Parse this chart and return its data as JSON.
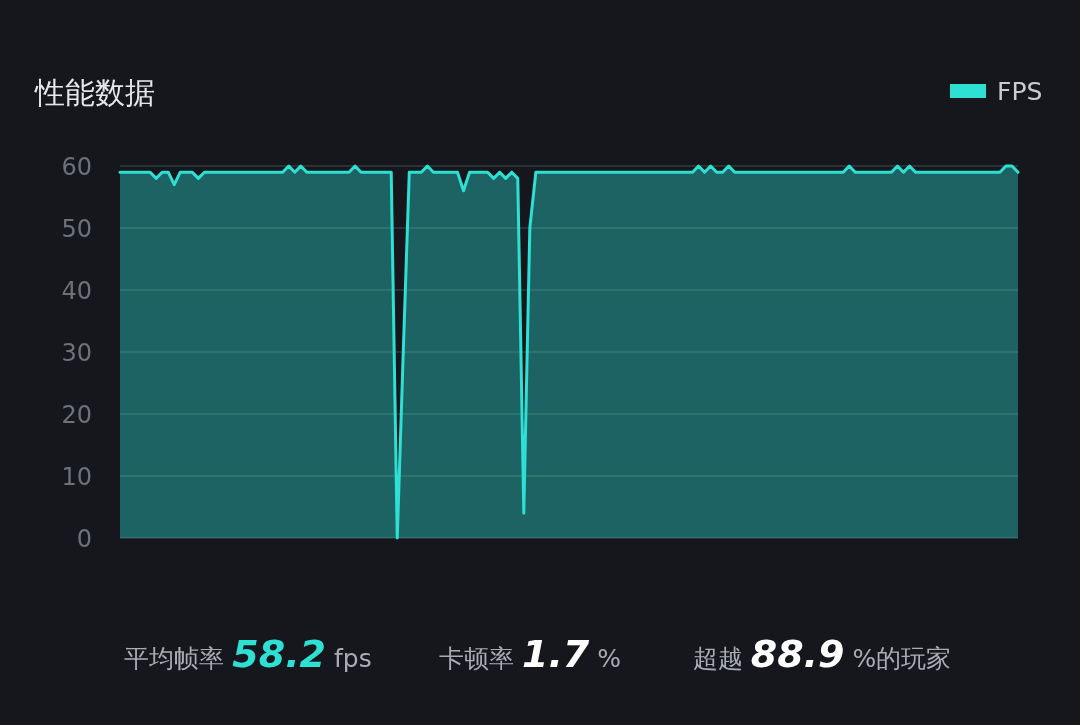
{
  "chart_data": {
    "type": "area",
    "title": "性能数据",
    "categories": [
      null,
      null,
      null,
      null,
      null,
      null,
      null,
      null,
      null,
      null,
      null,
      null,
      null,
      null,
      null,
      null,
      null,
      null,
      null,
      null,
      null,
      null,
      null,
      null,
      null,
      null,
      null,
      null,
      null,
      null,
      null,
      null,
      null,
      null,
      null,
      null,
      null,
      null,
      null,
      null,
      null,
      null,
      null,
      null,
      null,
      null,
      null,
      null,
      null,
      null,
      null,
      null,
      null,
      null,
      null,
      null,
      null,
      null,
      null,
      null,
      null,
      null,
      null,
      null,
      null,
      null,
      null,
      null,
      null,
      null,
      null,
      null,
      null,
      null,
      null,
      null,
      null,
      null,
      null,
      null,
      null,
      null,
      null,
      null,
      null,
      null,
      null,
      null,
      null,
      null,
      null,
      null,
      null,
      null,
      null,
      null,
      null,
      null,
      null,
      null,
      null,
      null,
      null,
      null,
      null,
      null,
      null,
      null,
      null,
      null,
      null,
      null,
      null,
      null,
      null,
      null,
      null,
      null,
      null,
      null,
      null,
      null,
      null,
      null,
      null,
      null,
      null,
      null,
      null,
      null,
      null,
      null,
      null,
      null,
      null,
      null,
      null,
      null,
      null,
      null,
      null,
      null,
      null,
      null,
      null,
      null,
      null,
      null,
      null,
      null
    ],
    "series": [
      {
        "name": "FPS",
        "color": "#2ee0d4",
        "values": [
          59,
          59,
          59,
          59,
          59,
          59,
          58,
          59,
          59,
          57,
          59,
          59,
          59,
          58,
          59,
          59,
          59,
          59,
          59,
          59,
          59,
          59,
          59,
          59,
          59,
          59,
          59,
          59,
          60,
          59,
          60,
          59,
          59,
          59,
          59,
          59,
          59,
          59,
          59,
          60,
          59,
          59,
          59,
          59,
          59,
          59,
          0,
          30,
          59,
          59,
          59,
          60,
          59,
          59,
          59,
          59,
          59,
          56,
          59,
          59,
          59,
          59,
          58,
          59,
          58,
          59,
          58,
          4,
          50,
          59,
          59,
          59,
          59,
          59,
          59,
          59,
          59,
          59,
          59,
          59,
          59,
          59,
          59,
          59,
          59,
          59,
          59,
          59,
          59,
          59,
          59,
          59,
          59,
          59,
          59,
          59,
          60,
          59,
          60,
          59,
          59,
          60,
          59,
          59,
          59,
          59,
          59,
          59,
          59,
          59,
          59,
          59,
          59,
          59,
          59,
          59,
          59,
          59,
          59,
          59,
          59,
          60,
          59,
          59,
          59,
          59,
          59,
          59,
          59,
          60,
          59,
          60,
          59,
          59,
          59,
          59,
          59,
          59,
          59,
          59,
          59,
          59,
          59,
          59,
          59,
          59,
          59,
          60,
          60,
          59
        ]
      }
    ],
    "ylim": [
      0,
      60
    ],
    "yticks": [
      0,
      10,
      20,
      30,
      40,
      50,
      60
    ],
    "grid": "y",
    "legend": "top right",
    "annotations": [
      "平均帧率 58.2 fps",
      "卡顿率 1.7 %",
      "超越 88.9 %的玩家"
    ]
  }
}
